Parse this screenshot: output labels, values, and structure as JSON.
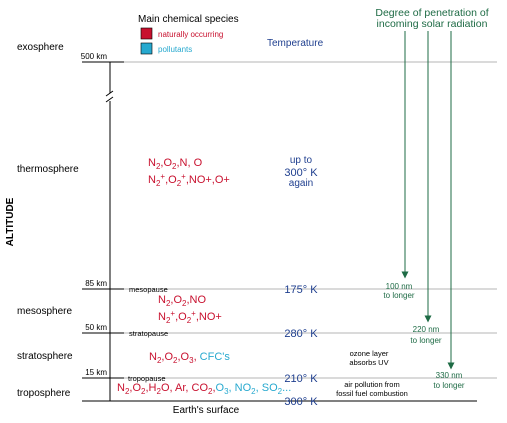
{
  "colors": {
    "natural": "#c8102e",
    "pollutant": "#27a9cf",
    "temperature": "#1f3f8f",
    "penetration": "#1e6b45",
    "text": "#000000",
    "boundary_line": "#b4b4b4"
  },
  "legend": {
    "title": "Main chemical species",
    "natural_label": "naturally occurring",
    "pollutant_label": "pollutants"
  },
  "axis": {
    "label": "ALTITUDE",
    "surface_label": "Earth's surface"
  },
  "temperature_header": "Temperature",
  "penetration_header": {
    "line1": "Degree of penetration of",
    "line2": "incoming solar radiation"
  },
  "layers": {
    "exosphere": "exosphere",
    "thermosphere": "thermosphere",
    "mesosphere": "mesosphere",
    "stratosphere": "stratosphere",
    "troposphere": "troposphere"
  },
  "boundaries": {
    "exo": {
      "altitude": "500 km"
    },
    "meso": {
      "altitude": "85 km",
      "name": "mesopause"
    },
    "strato": {
      "altitude": "50 km",
      "name": "stratopause"
    },
    "tropo": {
      "altitude": "15 km",
      "name": "tropopause"
    }
  },
  "species": {
    "thermo1": {
      "a": "N",
      "b": "2",
      "c": ",O",
      "d": "2",
      "e": ",N, O"
    },
    "thermo2": {
      "a": "N",
      "b": "2",
      "c": "+",
      "d": ",O",
      "e": "2",
      "f": "+",
      "g": ",NO+,O+"
    },
    "meso1": {
      "a": "N",
      "b": "2",
      "c": ",O",
      "d": "2",
      "e": ",NO"
    },
    "meso2": {
      "a": "N",
      "b": "2",
      "c": "+",
      "d": ",O",
      "e": "2",
      "f": "+",
      "g": ",NO+"
    },
    "strato": {
      "a": "N",
      "b": "2",
      "c": ",O",
      "d": "2",
      "e": ",O",
      "f": "3",
      "g": ",",
      "h": " CFC's"
    },
    "tropo": {
      "a": "N",
      "b": "2",
      "c": ",O",
      "d": "2",
      "e": ",H",
      "f": "2",
      "g": "O,  Ar, CO",
      "h": "2",
      "i": ",",
      "j": "O",
      "k": "3",
      "l": ", NO",
      "m": "2",
      "n": ", SO",
      "o": "2",
      "p": "..."
    }
  },
  "temperatures": {
    "thermo": {
      "line1": "up to",
      "line2": "300° K",
      "line3": "again"
    },
    "meso": "175° K",
    "strato": "280° K",
    "tropo": "210° K",
    "surface": "300° K"
  },
  "notes": {
    "ozone1": "ozone layer",
    "ozone2": "absorbs UV",
    "pollution1": "air pollution from",
    "pollution2": "fossil fuel combustion"
  },
  "penetration": {
    "p100": {
      "line1": "100 nm",
      "line2": "to longer"
    },
    "p220": {
      "line1": "220 nm",
      "line2": "to longer"
    },
    "p330": {
      "line1": "330 nm",
      "line2": "to longer"
    }
  }
}
